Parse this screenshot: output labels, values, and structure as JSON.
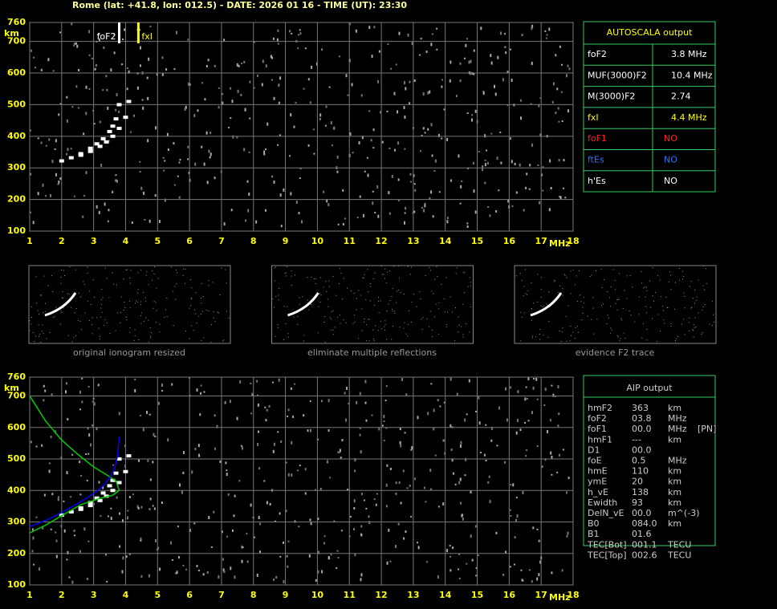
{
  "header": "Rome (lat: +41.8, lon: 012.5) - DATE: 2026 01 16 - TIME (UT): 23:30",
  "chart_data": [
    {
      "type": "ionogram",
      "xlabel": "MHz",
      "ylabel": "km",
      "xlim": [
        1,
        18
      ],
      "ylim": [
        100,
        760
      ],
      "xticks": [
        1,
        2,
        3,
        4,
        5,
        6,
        7,
        8,
        9,
        10,
        11,
        12,
        13,
        14,
        15,
        16,
        17,
        18
      ],
      "yticks": [
        100,
        200,
        300,
        400,
        500,
        600,
        700,
        760
      ],
      "grid": true,
      "markers": [
        {
          "label": "foF2",
          "x": 3.8,
          "color": "#ffffff"
        },
        {
          "label": "fxI",
          "x": 4.4,
          "color": "#ffff00"
        }
      ],
      "series": [
        {
          "color": "#ffffff",
          "x": [
            2.0,
            2.3,
            2.6,
            2.9,
            3.1,
            3.3,
            3.5,
            3.6,
            3.7,
            3.8,
            2.6,
            2.9,
            3.2,
            3.4,
            3.6,
            3.8,
            4.0,
            4.1
          ],
          "values": [
            322,
            332,
            345,
            362,
            376,
            392,
            415,
            432,
            455,
            500,
            340,
            352,
            368,
            382,
            400,
            425,
            460,
            510
          ]
        }
      ]
    },
    {
      "type": "ionogram",
      "xlabel": "MHz",
      "ylabel": "km",
      "xlim": [
        1,
        18
      ],
      "ylim": [
        100,
        760
      ],
      "xticks": [
        1,
        2,
        3,
        4,
        5,
        6,
        7,
        8,
        9,
        10,
        11,
        12,
        13,
        14,
        15,
        16,
        17,
        18
      ],
      "yticks": [
        100,
        200,
        300,
        400,
        500,
        600,
        700,
        760
      ],
      "grid": true,
      "series": [
        {
          "color": "#ffffff",
          "x": [
            2.0,
            2.3,
            2.6,
            2.9,
            3.1,
            3.3,
            3.5,
            3.6,
            3.7,
            3.8,
            2.6,
            2.9,
            3.2,
            3.4,
            3.6,
            3.8,
            4.0,
            4.1
          ],
          "values": [
            322,
            332,
            345,
            362,
            376,
            392,
            415,
            432,
            455,
            500,
            340,
            352,
            368,
            382,
            400,
            425,
            460,
            510
          ],
          "style": "dots"
        },
        {
          "color": "#00cc00",
          "x": [
            1.0,
            1.5,
            2.0,
            2.5,
            3.0,
            3.4,
            3.7,
            3.8,
            3.6,
            3.2,
            2.6,
            2.0,
            1.5,
            1.0
          ],
          "values": [
            700,
            620,
            560,
            515,
            475,
            450,
            430,
            400,
            385,
            375,
            355,
            320,
            290,
            265
          ],
          "style": "line"
        },
        {
          "color": "#0000ff",
          "x": [
            1.0,
            1.5,
            2.0,
            2.5,
            3.0,
            3.3,
            3.5,
            3.65,
            3.75,
            3.8
          ],
          "values": [
            285,
            305,
            330,
            358,
            390,
            415,
            440,
            470,
            510,
            570
          ],
          "style": "line"
        }
      ]
    }
  ],
  "thumbnails": [
    "original ionogram resized",
    "eliminate multiple reflections",
    "evidence F2 trace"
  ],
  "autoscala": {
    "title": "AUTOSCALA output",
    "rows": [
      {
        "name": "foF2",
        "value": "3.8 MHz",
        "color": "#ffffff"
      },
      {
        "name": "MUF(3000)F2",
        "value": "10.4 MHz",
        "color": "#ffffff"
      },
      {
        "name": "M(3000)F2",
        "value": "2.74",
        "color": "#ffffff"
      },
      {
        "name": "fxI",
        "value": "4.4 MHz",
        "color": "#ffff00"
      },
      {
        "name": "foF1",
        "value": "NO",
        "color": "#ff2020"
      },
      {
        "name": "ftEs",
        "value": "NO",
        "color": "#3070ff"
      },
      {
        "name": "h'Es",
        "value": "NO",
        "color": "#ffffff"
      }
    ]
  },
  "aip": {
    "title": "AIP output",
    "rows": [
      [
        "hmF2",
        "363",
        "km"
      ],
      [
        "foF2",
        "03.8",
        "MHz"
      ],
      [
        "foF1",
        "00.0",
        "MHz",
        "[PN]"
      ],
      [
        "hmF1",
        "---",
        "km"
      ],
      [
        "D1",
        "00.0"
      ],
      [
        "foE",
        "0.5",
        "MHz"
      ],
      [
        "hmE",
        "110",
        "km"
      ],
      [
        "ymE",
        "20",
        "km"
      ],
      [
        "h_vE",
        "138",
        "km"
      ],
      [
        "Ewidth",
        "93",
        "km"
      ],
      [
        "DelN_vE",
        "00.0",
        "m^(-3)"
      ],
      [
        "B0",
        "084.0",
        "km"
      ],
      [
        "B1",
        "01.6"
      ],
      [
        "TEC[Bot]",
        "001.1",
        "TECU"
      ],
      [
        "TEC[Top]",
        "002.6",
        "TECU"
      ]
    ]
  }
}
